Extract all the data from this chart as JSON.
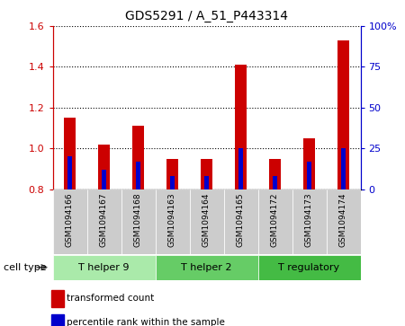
{
  "title": "GDS5291 / A_51_P443314",
  "samples": [
    "GSM1094166",
    "GSM1094167",
    "GSM1094168",
    "GSM1094163",
    "GSM1094164",
    "GSM1094165",
    "GSM1094172",
    "GSM1094173",
    "GSM1094174"
  ],
  "transformed_count": [
    1.15,
    1.02,
    1.11,
    0.95,
    0.95,
    1.41,
    0.95,
    1.05,
    1.53
  ],
  "percentile_rank": [
    20,
    12,
    17,
    8,
    8,
    25,
    8,
    17,
    25
  ],
  "ylim_left": [
    0.8,
    1.6
  ],
  "ylim_right": [
    0,
    100
  ],
  "yticks_left": [
    0.8,
    1.0,
    1.2,
    1.4,
    1.6
  ],
  "yticks_right": [
    0,
    25,
    50,
    75,
    100
  ],
  "ytick_labels_right": [
    "0",
    "25",
    "50",
    "75",
    "100%"
  ],
  "cell_groups": [
    {
      "label": "T helper 9",
      "indices": [
        0,
        1,
        2
      ],
      "color": "#aaeaaa"
    },
    {
      "label": "T helper 2",
      "indices": [
        3,
        4,
        5
      ],
      "color": "#66cc66"
    },
    {
      "label": "T regulatory",
      "indices": [
        6,
        7,
        8
      ],
      "color": "#44bb44"
    }
  ],
  "bar_color_red": "#cc0000",
  "bar_color_blue": "#0000cc",
  "bar_width": 0.35,
  "blue_bar_width": 0.15,
  "background_color": "#ffffff",
  "plot_bg_color": "#ffffff",
  "label_color_left": "#cc0000",
  "label_color_right": "#0000cc",
  "legend_items": [
    {
      "label": "transformed count",
      "color": "#cc0000"
    },
    {
      "label": "percentile rank within the sample",
      "color": "#0000cc"
    }
  ],
  "cell_type_label": "cell type"
}
